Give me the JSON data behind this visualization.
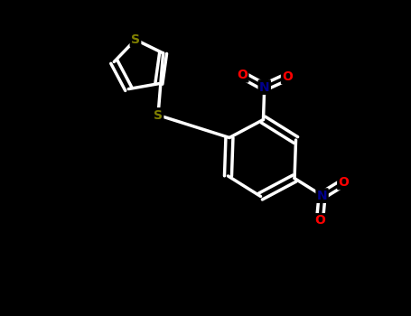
{
  "background_color": "#000000",
  "bond_color": "#ffffff",
  "S_color": "#808000",
  "N_color": "#00008b",
  "O_color": "#ff0000",
  "line_width": 2.5,
  "figsize": [
    4.55,
    3.5
  ],
  "dpi": 100,
  "xlim": [
    0,
    9.1
  ],
  "ylim": [
    0,
    7.0
  ]
}
